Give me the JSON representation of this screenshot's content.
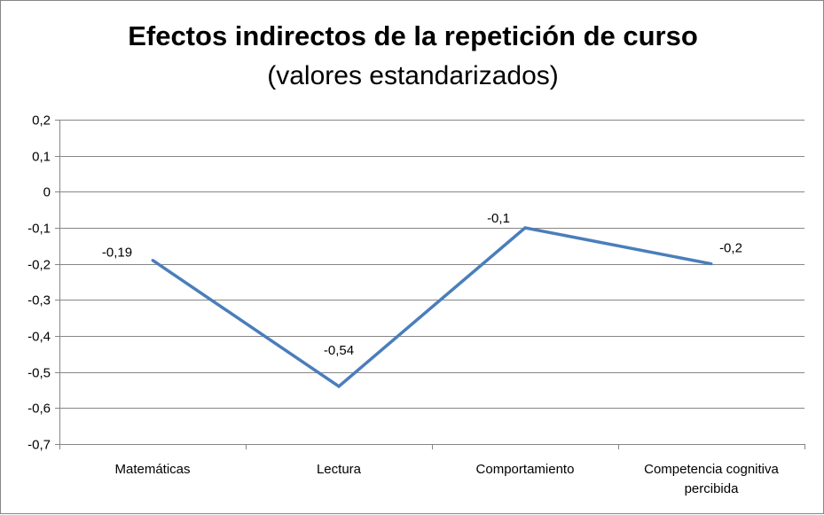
{
  "chart_data": {
    "type": "line",
    "title": "Efectos indirectos de la repetición de curso",
    "subtitle": "(valores estandarizados)",
    "categories": [
      "Matemáticas",
      "Lectura",
      "Comportamiento",
      "Competencia cognitiva percibida"
    ],
    "category_label_lines": [
      [
        "Matemáticas"
      ],
      [
        "Lectura"
      ],
      [
        "Comportamiento"
      ],
      [
        "Competencia cognitiva",
        "percibida"
      ]
    ],
    "series": [
      {
        "values": [
          -0.19,
          -0.54,
          -0.1,
          -0.2
        ],
        "labels": [
          "-0,19",
          "-0,54",
          "-0,1",
          "-0,2"
        ],
        "color": "#4a7ebb"
      }
    ],
    "ylim": [
      -0.7,
      0.2
    ],
    "y_ticks": [
      0.2,
      0.1,
      0,
      -0.1,
      -0.2,
      -0.3,
      -0.4,
      -0.5,
      -0.6,
      -0.7
    ],
    "y_tick_labels": [
      "0,2",
      "0,1",
      "0",
      "-0,1",
      "-0,2",
      "-0,3",
      "-0,4",
      "-0,5",
      "-0,6",
      "-0,7"
    ],
    "grid": true,
    "legend": "none",
    "colors": {
      "grid": "#868686",
      "axis": "#868686",
      "line": "#4a7ebb"
    }
  }
}
